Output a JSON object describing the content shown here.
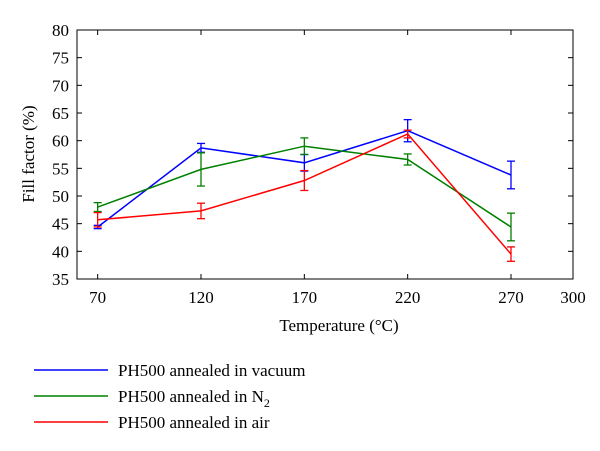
{
  "chart_data": {
    "type": "line",
    "xlabel": "Temperature (°C)",
    "ylabel": "Fill factor (%)",
    "xlim": [
      60,
      300
    ],
    "ylim": [
      35,
      80
    ],
    "xticks": [
      70,
      120,
      170,
      220,
      270,
      300
    ],
    "yticks": [
      35,
      40,
      45,
      50,
      55,
      60,
      65,
      70,
      75,
      80
    ],
    "grid": false,
    "legend_position": "bottom",
    "series": [
      {
        "name": "PH500 annealed in vacuum",
        "name_main": "PH500 annealed in vacuum",
        "name_sub": "",
        "color": "#0000ff",
        "x": [
          70,
          120,
          170,
          220,
          270
        ],
        "y": [
          44.4,
          58.7,
          56.0,
          61.8,
          53.8
        ],
        "err": [
          0.3,
          0.8,
          1.5,
          2.0,
          2.5
        ]
      },
      {
        "name": "PH500 annealed in N2",
        "name_main": "PH500 annealed in N",
        "name_sub": "2",
        "color": "#008000",
        "x": [
          70,
          120,
          170,
          220,
          270
        ],
        "y": [
          48.0,
          54.8,
          59.0,
          56.6,
          44.4
        ],
        "err": [
          0.8,
          3.0,
          1.5,
          1.0,
          2.5
        ]
      },
      {
        "name": "PH500 annealed in air",
        "name_main": "PH500 annealed in air",
        "name_sub": "",
        "color": "#ff0000",
        "x": [
          70,
          120,
          170,
          220,
          270
        ],
        "y": [
          45.7,
          47.3,
          52.8,
          61.2,
          39.5
        ],
        "err": [
          1.3,
          1.4,
          1.8,
          0.7,
          1.3
        ]
      }
    ]
  }
}
